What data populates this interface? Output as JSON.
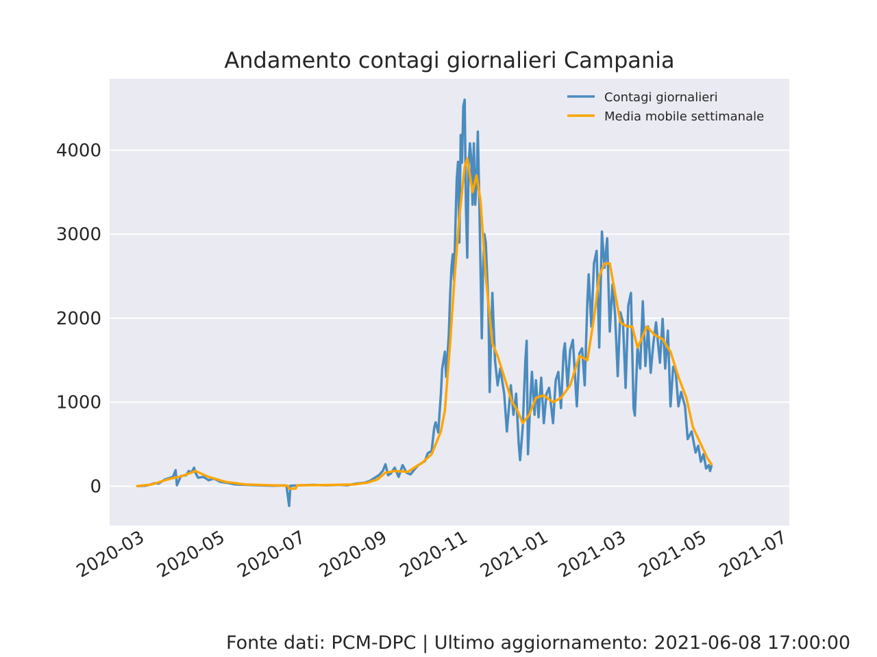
{
  "chart_data": {
    "type": "line",
    "title": "Andamento contagi giornalieri Campania",
    "xlabel": "",
    "ylabel": "",
    "x_range": [
      "2020-02-07",
      "2021-07-06"
    ],
    "ylim": [
      -470,
      4850
    ],
    "y_ticks": [
      0,
      1000,
      2000,
      3000,
      4000
    ],
    "x_ticks": [
      "2020-03",
      "2020-05",
      "2020-07",
      "2020-09",
      "2020-11",
      "2021-01",
      "2021-03",
      "2021-05",
      "2021-07"
    ],
    "grid": true,
    "legend_position": "top-right",
    "colors": {
      "background": "#eaeaf2",
      "grid": "#ffffff",
      "daily": "#4b8bbe",
      "average": "#ffa500"
    },
    "series": [
      {
        "name": "Contagi giornalieri",
        "points": [
          [
            "2020-02-28",
            0
          ],
          [
            "2020-03-05",
            5
          ],
          [
            "2020-03-08",
            15
          ],
          [
            "2020-03-12",
            35
          ],
          [
            "2020-03-15",
            30
          ],
          [
            "2020-03-20",
            80
          ],
          [
            "2020-03-26",
            110
          ],
          [
            "2020-03-28",
            190
          ],
          [
            "2020-03-29",
            10
          ],
          [
            "2020-04-01",
            120
          ],
          [
            "2020-04-05",
            130
          ],
          [
            "2020-04-07",
            180
          ],
          [
            "2020-04-09",
            160
          ],
          [
            "2020-04-11",
            220
          ],
          [
            "2020-04-12",
            160
          ],
          [
            "2020-04-14",
            100
          ],
          [
            "2020-04-18",
            110
          ],
          [
            "2020-04-22",
            70
          ],
          [
            "2020-04-26",
            90
          ],
          [
            "2020-05-01",
            50
          ],
          [
            "2020-05-06",
            40
          ],
          [
            "2020-05-12",
            20
          ],
          [
            "2020-05-20",
            15
          ],
          [
            "2020-05-30",
            10
          ],
          [
            "2020-06-10",
            5
          ],
          [
            "2020-06-18",
            8
          ],
          [
            "2020-06-20",
            5
          ],
          [
            "2020-06-22",
            -235
          ],
          [
            "2020-06-23",
            5
          ],
          [
            "2020-07-01",
            10
          ],
          [
            "2020-07-10",
            15
          ],
          [
            "2020-07-20",
            10
          ],
          [
            "2020-07-30",
            15
          ],
          [
            "2020-08-05",
            10
          ],
          [
            "2020-08-12",
            30
          ],
          [
            "2020-08-18",
            40
          ],
          [
            "2020-08-22",
            60
          ],
          [
            "2020-08-26",
            100
          ],
          [
            "2020-08-29",
            130
          ],
          [
            "2020-09-01",
            180
          ],
          [
            "2020-09-03",
            260
          ],
          [
            "2020-09-05",
            130
          ],
          [
            "2020-09-07",
            150
          ],
          [
            "2020-09-10",
            220
          ],
          [
            "2020-09-13",
            110
          ],
          [
            "2020-09-16",
            250
          ],
          [
            "2020-09-19",
            160
          ],
          [
            "2020-09-22",
            140
          ],
          [
            "2020-09-25",
            200
          ],
          [
            "2020-09-28",
            250
          ],
          [
            "2020-10-01",
            280
          ],
          [
            "2020-10-03",
            300
          ],
          [
            "2020-10-05",
            390
          ],
          [
            "2020-10-08",
            420
          ],
          [
            "2020-10-10",
            700
          ],
          [
            "2020-10-11",
            760
          ],
          [
            "2020-10-13",
            640
          ],
          [
            "2020-10-15",
            1100
          ],
          [
            "2020-10-16",
            1400
          ],
          [
            "2020-10-18",
            1600
          ],
          [
            "2020-10-19",
            1300
          ],
          [
            "2020-10-21",
            1800
          ],
          [
            "2020-10-22",
            2270
          ],
          [
            "2020-10-23",
            2600
          ],
          [
            "2020-10-24",
            2760
          ],
          [
            "2020-10-25",
            2450
          ],
          [
            "2020-10-26",
            3100
          ],
          [
            "2020-10-27",
            3650
          ],
          [
            "2020-10-28",
            3860
          ],
          [
            "2020-10-29",
            2900
          ],
          [
            "2020-10-30",
            4180
          ],
          [
            "2020-10-31",
            3850
          ],
          [
            "2020-11-01",
            4520
          ],
          [
            "2020-11-02",
            4600
          ],
          [
            "2020-11-03",
            3300
          ],
          [
            "2020-11-04",
            2720
          ],
          [
            "2020-11-05",
            3820
          ],
          [
            "2020-11-06",
            4080
          ],
          [
            "2020-11-07",
            3900
          ],
          [
            "2020-11-08",
            3350
          ],
          [
            "2020-11-09",
            4080
          ],
          [
            "2020-11-10",
            3350
          ],
          [
            "2020-11-11",
            3600
          ],
          [
            "2020-11-12",
            4220
          ],
          [
            "2020-11-13",
            3500
          ],
          [
            "2020-11-15",
            1760
          ],
          [
            "2020-11-16",
            2600
          ],
          [
            "2020-11-17",
            3000
          ],
          [
            "2020-11-18",
            2900
          ],
          [
            "2020-11-20",
            2150
          ],
          [
            "2020-11-21",
            1120
          ],
          [
            "2020-11-23",
            2300
          ],
          [
            "2020-11-25",
            1500
          ],
          [
            "2020-11-27",
            1200
          ],
          [
            "2020-11-29",
            1400
          ],
          [
            "2020-12-02",
            1100
          ],
          [
            "2020-12-04",
            650
          ],
          [
            "2020-12-07",
            1200
          ],
          [
            "2020-12-09",
            850
          ],
          [
            "2020-12-11",
            1100
          ],
          [
            "2020-12-13",
            500
          ],
          [
            "2020-12-14",
            310
          ],
          [
            "2020-12-16",
            700
          ],
          [
            "2020-12-18",
            1500
          ],
          [
            "2020-12-19",
            1730
          ],
          [
            "2020-12-20",
            380
          ],
          [
            "2020-12-22",
            1100
          ],
          [
            "2020-12-23",
            1360
          ],
          [
            "2020-12-25",
            850
          ],
          [
            "2020-12-26",
            1260
          ],
          [
            "2020-12-28",
            820
          ],
          [
            "2020-12-30",
            1290
          ],
          [
            "2021-01-01",
            750
          ],
          [
            "2021-01-03",
            1100
          ],
          [
            "2021-01-05",
            1170
          ],
          [
            "2021-01-08",
            750
          ],
          [
            "2021-01-10",
            1260
          ],
          [
            "2021-01-12",
            1360
          ],
          [
            "2021-01-14",
            930
          ],
          [
            "2021-01-16",
            1600
          ],
          [
            "2021-01-17",
            1700
          ],
          [
            "2021-01-19",
            1180
          ],
          [
            "2021-01-21",
            1620
          ],
          [
            "2021-01-23",
            1740
          ],
          [
            "2021-01-26",
            950
          ],
          [
            "2021-01-28",
            1580
          ],
          [
            "2021-01-30",
            1640
          ],
          [
            "2021-02-01",
            1200
          ],
          [
            "2021-02-03",
            2200
          ],
          [
            "2021-02-04",
            2520
          ],
          [
            "2021-02-06",
            1900
          ],
          [
            "2021-02-08",
            2650
          ],
          [
            "2021-02-10",
            2800
          ],
          [
            "2021-02-12",
            1650
          ],
          [
            "2021-02-14",
            3030
          ],
          [
            "2021-02-16",
            2600
          ],
          [
            "2021-02-18",
            2950
          ],
          [
            "2021-02-20",
            1840
          ],
          [
            "2021-02-22",
            2400
          ],
          [
            "2021-02-24",
            2050
          ],
          [
            "2021-02-26",
            1310
          ],
          [
            "2021-02-28",
            2070
          ],
          [
            "2021-03-02",
            1950
          ],
          [
            "2021-03-04",
            1170
          ],
          [
            "2021-03-06",
            2150
          ],
          [
            "2021-03-08",
            2300
          ],
          [
            "2021-03-10",
            930
          ],
          [
            "2021-03-11",
            840
          ],
          [
            "2021-03-13",
            1650
          ],
          [
            "2021-03-15",
            1400
          ],
          [
            "2021-03-17",
            2200
          ],
          [
            "2021-03-19",
            1430
          ],
          [
            "2021-03-21",
            1900
          ],
          [
            "2021-03-23",
            1350
          ],
          [
            "2021-03-25",
            1700
          ],
          [
            "2021-03-27",
            1950
          ],
          [
            "2021-03-30",
            1470
          ],
          [
            "2021-04-01",
            1990
          ],
          [
            "2021-04-03",
            1400
          ],
          [
            "2021-04-05",
            1850
          ],
          [
            "2021-04-07",
            950
          ],
          [
            "2021-04-09",
            1420
          ],
          [
            "2021-04-11",
            1350
          ],
          [
            "2021-04-13",
            950
          ],
          [
            "2021-04-15",
            1120
          ],
          [
            "2021-04-18",
            950
          ],
          [
            "2021-04-20",
            560
          ],
          [
            "2021-04-23",
            650
          ],
          [
            "2021-04-26",
            400
          ],
          [
            "2021-04-28",
            480
          ],
          [
            "2021-04-30",
            290
          ],
          [
            "2021-05-02",
            380
          ],
          [
            "2021-05-04",
            210
          ],
          [
            "2021-05-06",
            250
          ],
          [
            "2021-05-07",
            180
          ],
          [
            "2021-05-08",
            240
          ]
        ]
      },
      {
        "name": "Media mobile settimanale",
        "points": [
          [
            "2020-02-28",
            0
          ],
          [
            "2020-03-10",
            20
          ],
          [
            "2020-03-22",
            80
          ],
          [
            "2020-04-02",
            120
          ],
          [
            "2020-04-12",
            180
          ],
          [
            "2020-04-22",
            110
          ],
          [
            "2020-05-05",
            50
          ],
          [
            "2020-05-20",
            20
          ],
          [
            "2020-06-10",
            10
          ],
          [
            "2020-06-21",
            5
          ],
          [
            "2020-06-22",
            -30
          ],
          [
            "2020-06-27",
            -30
          ],
          [
            "2020-06-28",
            10
          ],
          [
            "2020-07-20",
            12
          ],
          [
            "2020-08-10",
            20
          ],
          [
            "2020-08-20",
            40
          ],
          [
            "2020-08-28",
            80
          ],
          [
            "2020-09-03",
            160
          ],
          [
            "2020-09-10",
            180
          ],
          [
            "2020-09-20",
            170
          ],
          [
            "2020-10-01",
            280
          ],
          [
            "2020-10-08",
            380
          ],
          [
            "2020-10-15",
            650
          ],
          [
            "2020-10-18",
            900
          ],
          [
            "2020-10-22",
            1700
          ],
          [
            "2020-10-25",
            2400
          ],
          [
            "2020-10-29",
            3200
          ],
          [
            "2020-11-02",
            3800
          ],
          [
            "2020-11-04",
            3900
          ],
          [
            "2020-11-06",
            3700
          ],
          [
            "2020-11-08",
            3500
          ],
          [
            "2020-11-11",
            3700
          ],
          [
            "2020-11-14",
            3400
          ],
          [
            "2020-11-18",
            2500
          ],
          [
            "2020-11-23",
            1700
          ],
          [
            "2020-11-27",
            1550
          ],
          [
            "2020-12-02",
            1300
          ],
          [
            "2020-12-08",
            1000
          ],
          [
            "2020-12-12",
            900
          ],
          [
            "2020-12-16",
            750
          ],
          [
            "2020-12-21",
            850
          ],
          [
            "2020-12-26",
            1050
          ],
          [
            "2021-01-01",
            1080
          ],
          [
            "2021-01-08",
            1000
          ],
          [
            "2021-01-14",
            1050
          ],
          [
            "2021-01-21",
            1200
          ],
          [
            "2021-01-28",
            1550
          ],
          [
            "2021-02-03",
            1500
          ],
          [
            "2021-02-08",
            2000
          ],
          [
            "2021-02-12",
            2500
          ],
          [
            "2021-02-16",
            2650
          ],
          [
            "2021-02-20",
            2650
          ],
          [
            "2021-02-24",
            2300
          ],
          [
            "2021-02-28",
            1950
          ],
          [
            "2021-03-05",
            1900
          ],
          [
            "2021-03-09",
            1900
          ],
          [
            "2021-03-13",
            1650
          ],
          [
            "2021-03-16",
            1750
          ],
          [
            "2021-03-20",
            1900
          ],
          [
            "2021-03-26",
            1800
          ],
          [
            "2021-04-01",
            1750
          ],
          [
            "2021-04-07",
            1600
          ],
          [
            "2021-04-13",
            1300
          ],
          [
            "2021-04-19",
            1050
          ],
          [
            "2021-04-24",
            700
          ],
          [
            "2021-04-30",
            500
          ],
          [
            "2021-05-05",
            330
          ],
          [
            "2021-05-08",
            260
          ]
        ]
      }
    ]
  },
  "footer": "Fonte dati: PCM-DPC | Ultimo aggiornamento: 2021-06-08 17:00:00"
}
